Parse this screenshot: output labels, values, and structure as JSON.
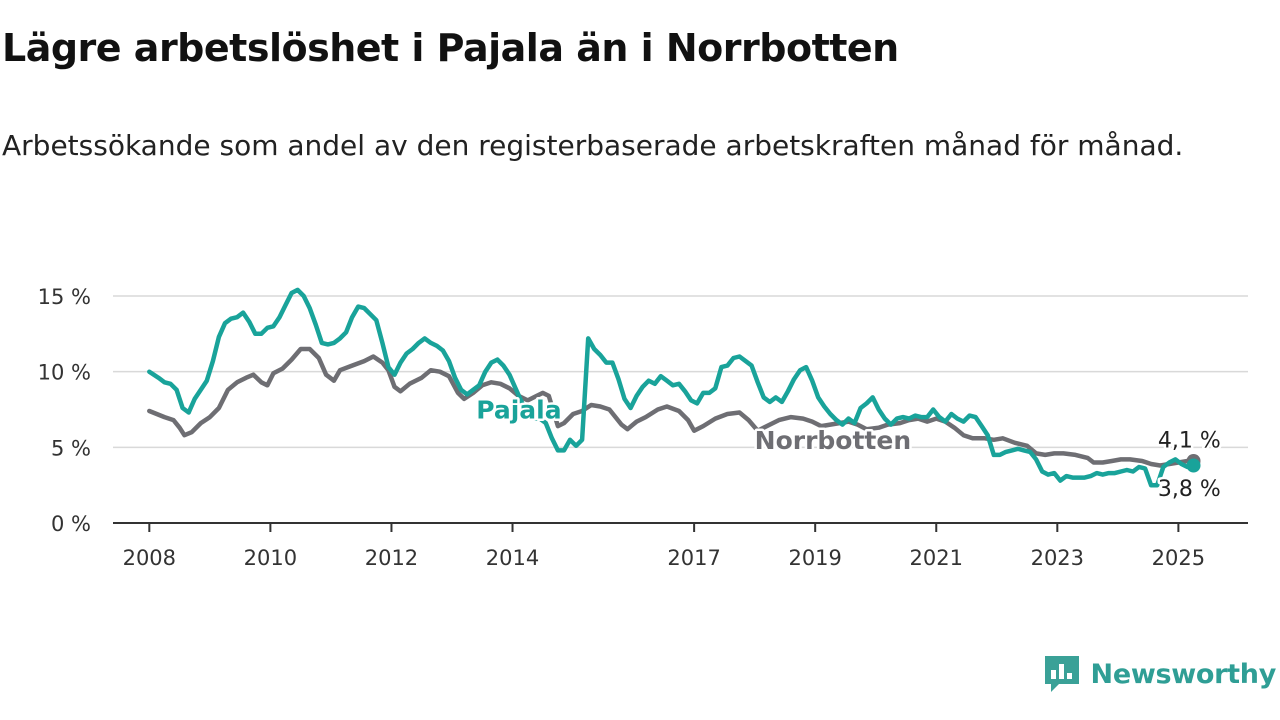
{
  "title": "Lägre arbetslöshet i Pajala än i Norrbotten",
  "subtitle": "Arbetssökande som andel av den registerbaserade arbetskraften månad för månad.",
  "brand": {
    "name": "Newsworthy",
    "icon": "newsworthy-logo-icon",
    "color": "#3aa197"
  },
  "chart_data": {
    "type": "line",
    "x_unit": "year",
    "ylim": [
      0,
      15
    ],
    "y_ticks": [
      {
        "value": 0,
        "label": "0 %"
      },
      {
        "value": 5,
        "label": "5 %"
      },
      {
        "value": 10,
        "label": "10 %"
      },
      {
        "value": 15,
        "label": "15 %"
      }
    ],
    "x_ticks": [
      {
        "value": 2008,
        "label": "2008"
      },
      {
        "value": 2010,
        "label": "2010"
      },
      {
        "value": 2012,
        "label": "2012"
      },
      {
        "value": 2014,
        "label": "2014"
      },
      {
        "value": 2017,
        "label": "2017"
      },
      {
        "value": 2019,
        "label": "2019"
      },
      {
        "value": 2021,
        "label": "2021"
      },
      {
        "value": 2023,
        "label": "2023"
      },
      {
        "value": 2025,
        "label": "2025"
      }
    ],
    "grid": true,
    "series": [
      {
        "name": "Norrbotten",
        "color": "#6e6e73",
        "end_label": "4,1 %",
        "points": [
          [
            2008.0,
            7.4
          ],
          [
            2008.25,
            7.0
          ],
          [
            2008.4,
            6.8
          ],
          [
            2008.5,
            6.3
          ],
          [
            2008.58,
            5.8
          ],
          [
            2008.7,
            6.0
          ],
          [
            2008.85,
            6.6
          ],
          [
            2009.0,
            7.0
          ],
          [
            2009.15,
            7.6
          ],
          [
            2009.3,
            8.8
          ],
          [
            2009.45,
            9.3
          ],
          [
            2009.6,
            9.6
          ],
          [
            2009.72,
            9.8
          ],
          [
            2009.85,
            9.3
          ],
          [
            2009.95,
            9.1
          ],
          [
            2010.05,
            9.9
          ],
          [
            2010.2,
            10.2
          ],
          [
            2010.35,
            10.8
          ],
          [
            2010.5,
            11.5
          ],
          [
            2010.65,
            11.5
          ],
          [
            2010.8,
            10.9
          ],
          [
            2010.92,
            9.8
          ],
          [
            2011.05,
            9.4
          ],
          [
            2011.15,
            10.1
          ],
          [
            2011.35,
            10.4
          ],
          [
            2011.55,
            10.7
          ],
          [
            2011.7,
            11.0
          ],
          [
            2011.85,
            10.6
          ],
          [
            2011.95,
            10.1
          ],
          [
            2012.05,
            9.0
          ],
          [
            2012.15,
            8.7
          ],
          [
            2012.3,
            9.2
          ],
          [
            2012.5,
            9.6
          ],
          [
            2012.65,
            10.1
          ],
          [
            2012.8,
            10.0
          ],
          [
            2012.95,
            9.7
          ],
          [
            2013.1,
            8.6
          ],
          [
            2013.2,
            8.2
          ],
          [
            2013.35,
            8.6
          ],
          [
            2013.5,
            9.1
          ],
          [
            2013.65,
            9.3
          ],
          [
            2013.8,
            9.2
          ],
          [
            2013.95,
            8.9
          ],
          [
            2014.1,
            8.4
          ],
          [
            2014.25,
            8.1
          ],
          [
            2014.4,
            8.4
          ],
          [
            2014.5,
            8.6
          ],
          [
            2014.6,
            8.4
          ],
          [
            2014.75,
            6.4
          ],
          [
            2014.85,
            6.6
          ],
          [
            2015.0,
            7.2
          ],
          [
            2015.15,
            7.4
          ],
          [
            2015.3,
            7.8
          ],
          [
            2015.45,
            7.7
          ],
          [
            2015.6,
            7.5
          ],
          [
            2015.8,
            6.5
          ],
          [
            2015.9,
            6.2
          ],
          [
            2016.05,
            6.7
          ],
          [
            2016.2,
            7.0
          ],
          [
            2016.4,
            7.5
          ],
          [
            2016.55,
            7.7
          ],
          [
            2016.75,
            7.4
          ],
          [
            2016.9,
            6.8
          ],
          [
            2017.0,
            6.1
          ],
          [
            2017.15,
            6.4
          ],
          [
            2017.35,
            6.9
          ],
          [
            2017.55,
            7.2
          ],
          [
            2017.75,
            7.3
          ],
          [
            2017.9,
            6.8
          ],
          [
            2018.05,
            6.1
          ],
          [
            2018.2,
            6.4
          ],
          [
            2018.4,
            6.8
          ],
          [
            2018.6,
            7.0
          ],
          [
            2018.8,
            6.9
          ],
          [
            2018.95,
            6.7
          ],
          [
            2019.1,
            6.4
          ],
          [
            2019.25,
            6.5
          ],
          [
            2019.4,
            6.6
          ],
          [
            2019.55,
            6.7
          ],
          [
            2019.7,
            6.5
          ],
          [
            2019.85,
            6.2
          ],
          [
            2020.05,
            6.3
          ],
          [
            2020.2,
            6.5
          ],
          [
            2020.4,
            6.6
          ],
          [
            2020.55,
            6.8
          ],
          [
            2020.7,
            6.9
          ],
          [
            2020.85,
            6.7
          ],
          [
            2021.0,
            6.9
          ],
          [
            2021.15,
            6.7
          ],
          [
            2021.3,
            6.3
          ],
          [
            2021.45,
            5.8
          ],
          [
            2021.6,
            5.6
          ],
          [
            2021.8,
            5.6
          ],
          [
            2021.95,
            5.5
          ],
          [
            2022.1,
            5.6
          ],
          [
            2022.3,
            5.3
          ],
          [
            2022.5,
            5.1
          ],
          [
            2022.65,
            4.6
          ],
          [
            2022.8,
            4.5
          ],
          [
            2022.95,
            4.6
          ],
          [
            2023.1,
            4.6
          ],
          [
            2023.3,
            4.5
          ],
          [
            2023.5,
            4.3
          ],
          [
            2023.6,
            4.0
          ],
          [
            2023.75,
            4.0
          ],
          [
            2023.9,
            4.1
          ],
          [
            2024.05,
            4.2
          ],
          [
            2024.2,
            4.2
          ],
          [
            2024.4,
            4.1
          ],
          [
            2024.55,
            3.9
          ],
          [
            2024.7,
            3.8
          ],
          [
            2024.85,
            3.9
          ],
          [
            2025.0,
            4.0
          ],
          [
            2025.15,
            4.1
          ],
          [
            2025.25,
            4.1
          ]
        ]
      },
      {
        "name": "Pajala",
        "color": "#19a39a",
        "end_label": "3,8 %",
        "points": [
          [
            2008.0,
            10.0
          ],
          [
            2008.15,
            9.6
          ],
          [
            2008.25,
            9.3
          ],
          [
            2008.35,
            9.2
          ],
          [
            2008.45,
            8.8
          ],
          [
            2008.55,
            7.6
          ],
          [
            2008.65,
            7.3
          ],
          [
            2008.75,
            8.2
          ],
          [
            2008.85,
            8.8
          ],
          [
            2008.95,
            9.4
          ],
          [
            2009.05,
            10.7
          ],
          [
            2009.15,
            12.3
          ],
          [
            2009.25,
            13.2
          ],
          [
            2009.35,
            13.5
          ],
          [
            2009.45,
            13.6
          ],
          [
            2009.55,
            13.9
          ],
          [
            2009.65,
            13.3
          ],
          [
            2009.75,
            12.5
          ],
          [
            2009.85,
            12.5
          ],
          [
            2009.95,
            12.9
          ],
          [
            2010.05,
            13.0
          ],
          [
            2010.15,
            13.6
          ],
          [
            2010.25,
            14.4
          ],
          [
            2010.35,
            15.2
          ],
          [
            2010.45,
            15.4
          ],
          [
            2010.55,
            15.0
          ],
          [
            2010.65,
            14.2
          ],
          [
            2010.75,
            13.1
          ],
          [
            2010.85,
            11.9
          ],
          [
            2010.95,
            11.8
          ],
          [
            2011.05,
            11.9
          ],
          [
            2011.15,
            12.2
          ],
          [
            2011.25,
            12.6
          ],
          [
            2011.35,
            13.6
          ],
          [
            2011.45,
            14.3
          ],
          [
            2011.55,
            14.2
          ],
          [
            2011.65,
            13.8
          ],
          [
            2011.75,
            13.4
          ],
          [
            2011.85,
            11.9
          ],
          [
            2011.95,
            10.3
          ],
          [
            2012.05,
            9.8
          ],
          [
            2012.15,
            10.6
          ],
          [
            2012.25,
            11.2
          ],
          [
            2012.35,
            11.5
          ],
          [
            2012.45,
            11.9
          ],
          [
            2012.55,
            12.2
          ],
          [
            2012.65,
            11.9
          ],
          [
            2012.75,
            11.7
          ],
          [
            2012.85,
            11.4
          ],
          [
            2012.95,
            10.7
          ],
          [
            2013.05,
            9.6
          ],
          [
            2013.15,
            8.8
          ],
          [
            2013.25,
            8.5
          ],
          [
            2013.35,
            8.8
          ],
          [
            2013.45,
            9.1
          ],
          [
            2013.55,
            10.0
          ],
          [
            2013.65,
            10.6
          ],
          [
            2013.75,
            10.8
          ],
          [
            2013.85,
            10.4
          ],
          [
            2013.95,
            9.8
          ],
          [
            2014.05,
            8.9
          ],
          [
            2014.15,
            8.0
          ],
          [
            2014.25,
            7.2
          ],
          [
            2014.35,
            6.9
          ],
          [
            2014.45,
            6.9
          ],
          [
            2014.55,
            6.6
          ],
          [
            2014.65,
            5.6
          ],
          [
            2014.75,
            4.8
          ],
          [
            2014.85,
            4.8
          ],
          [
            2014.95,
            5.5
          ],
          [
            2015.05,
            5.1
          ],
          [
            2015.15,
            5.5
          ],
          [
            2015.25,
            12.2
          ],
          [
            2015.35,
            11.5
          ],
          [
            2015.45,
            11.1
          ],
          [
            2015.55,
            10.6
          ],
          [
            2015.65,
            10.6
          ],
          [
            2015.75,
            9.5
          ],
          [
            2015.85,
            8.2
          ],
          [
            2015.95,
            7.6
          ],
          [
            2016.05,
            8.4
          ],
          [
            2016.15,
            9.0
          ],
          [
            2016.25,
            9.4
          ],
          [
            2016.35,
            9.2
          ],
          [
            2016.45,
            9.7
          ],
          [
            2016.55,
            9.4
          ],
          [
            2016.65,
            9.1
          ],
          [
            2016.75,
            9.2
          ],
          [
            2016.85,
            8.7
          ],
          [
            2016.95,
            8.1
          ],
          [
            2017.05,
            7.9
          ],
          [
            2017.15,
            8.6
          ],
          [
            2017.25,
            8.6
          ],
          [
            2017.35,
            8.9
          ],
          [
            2017.45,
            10.3
          ],
          [
            2017.55,
            10.4
          ],
          [
            2017.65,
            10.9
          ],
          [
            2017.75,
            11.0
          ],
          [
            2017.85,
            10.7
          ],
          [
            2017.95,
            10.4
          ],
          [
            2018.05,
            9.3
          ],
          [
            2018.15,
            8.3
          ],
          [
            2018.25,
            8.0
          ],
          [
            2018.35,
            8.3
          ],
          [
            2018.45,
            8.0
          ],
          [
            2018.55,
            8.7
          ],
          [
            2018.65,
            9.5
          ],
          [
            2018.75,
            10.1
          ],
          [
            2018.85,
            10.3
          ],
          [
            2018.95,
            9.4
          ],
          [
            2019.05,
            8.3
          ],
          [
            2019.15,
            7.7
          ],
          [
            2019.25,
            7.2
          ],
          [
            2019.35,
            6.8
          ],
          [
            2019.45,
            6.5
          ],
          [
            2019.55,
            6.9
          ],
          [
            2019.65,
            6.6
          ],
          [
            2019.75,
            7.6
          ],
          [
            2019.85,
            7.9
          ],
          [
            2019.95,
            8.3
          ],
          [
            2020.05,
            7.5
          ],
          [
            2020.15,
            6.9
          ],
          [
            2020.25,
            6.5
          ],
          [
            2020.35,
            6.9
          ],
          [
            2020.45,
            7.0
          ],
          [
            2020.55,
            6.9
          ],
          [
            2020.65,
            7.1
          ],
          [
            2020.75,
            7.0
          ],
          [
            2020.85,
            7.0
          ],
          [
            2020.95,
            7.5
          ],
          [
            2021.05,
            7.0
          ],
          [
            2021.15,
            6.7
          ],
          [
            2021.25,
            7.2
          ],
          [
            2021.35,
            6.9
          ],
          [
            2021.45,
            6.7
          ],
          [
            2021.55,
            7.1
          ],
          [
            2021.65,
            7.0
          ],
          [
            2021.75,
            6.4
          ],
          [
            2021.85,
            5.8
          ],
          [
            2021.95,
            4.5
          ],
          [
            2022.05,
            4.5
          ],
          [
            2022.15,
            4.7
          ],
          [
            2022.25,
            4.8
          ],
          [
            2022.35,
            4.9
          ],
          [
            2022.45,
            4.8
          ],
          [
            2022.55,
            4.7
          ],
          [
            2022.65,
            4.2
          ],
          [
            2022.75,
            3.4
          ],
          [
            2022.85,
            3.2
          ],
          [
            2022.95,
            3.3
          ],
          [
            2023.05,
            2.8
          ],
          [
            2023.15,
            3.1
          ],
          [
            2023.25,
            3.0
          ],
          [
            2023.35,
            3.0
          ],
          [
            2023.45,
            3.0
          ],
          [
            2023.55,
            3.1
          ],
          [
            2023.65,
            3.3
          ],
          [
            2023.75,
            3.2
          ],
          [
            2023.85,
            3.3
          ],
          [
            2023.95,
            3.3
          ],
          [
            2024.05,
            3.4
          ],
          [
            2024.15,
            3.5
          ],
          [
            2024.25,
            3.4
          ],
          [
            2024.35,
            3.7
          ],
          [
            2024.45,
            3.6
          ],
          [
            2024.55,
            2.5
          ],
          [
            2024.65,
            2.5
          ],
          [
            2024.75,
            3.7
          ],
          [
            2024.85,
            4.0
          ],
          [
            2024.95,
            4.2
          ],
          [
            2025.05,
            3.9
          ],
          [
            2025.15,
            3.7
          ],
          [
            2025.25,
            3.8
          ]
        ]
      }
    ]
  }
}
